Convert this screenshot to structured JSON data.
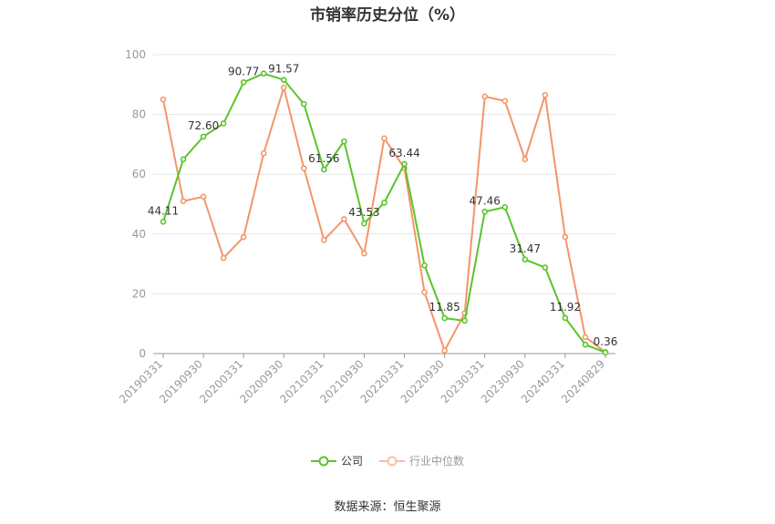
{
  "chart_data": {
    "type": "line",
    "title": "市销率历史分位（%）",
    "x_labels_shown": [
      "20190331",
      "20190930",
      "20200331",
      "20200930",
      "20210331",
      "20210930",
      "20220331",
      "20220930",
      "20230331",
      "20230930",
      "20240331",
      "20240829"
    ],
    "ylim": [
      0,
      100
    ],
    "yticks": [
      0,
      20,
      40,
      60,
      80,
      100
    ],
    "grid": true,
    "legend_position": "bottom-center",
    "series": [
      {
        "name": "公司",
        "color": "#5ac42b",
        "values": [
          44.11,
          65.0,
          72.6,
          77.0,
          90.77,
          93.7,
          91.57,
          83.5,
          61.56,
          71.0,
          43.53,
          50.5,
          63.44,
          29.5,
          11.85,
          11.0,
          47.46,
          49.0,
          31.47,
          28.8,
          11.92,
          3.0,
          0.36
        ],
        "labels": {
          "0": "44.11",
          "2": "72.60",
          "4": "90.77",
          "6": "91.57",
          "8": "61.56",
          "10": "43.53",
          "12": "63.44",
          "14": "11.85",
          "16": "47.46",
          "18": "31.47",
          "20": "11.92",
          "22": "0.36"
        }
      },
      {
        "name": "行业中位数",
        "color": "#f4956a",
        "values": [
          85.0,
          51.0,
          52.5,
          32.0,
          39.0,
          67.0,
          89.0,
          62.0,
          38.0,
          45.0,
          33.5,
          72.0,
          62.0,
          20.5,
          1.0,
          13.5,
          86.0,
          84.5,
          65.0,
          86.5,
          39.0,
          5.5,
          0.5
        ]
      }
    ]
  },
  "legend": {
    "company": "公司",
    "industry": "行业中位数"
  },
  "source": "数据来源：恒生聚源"
}
